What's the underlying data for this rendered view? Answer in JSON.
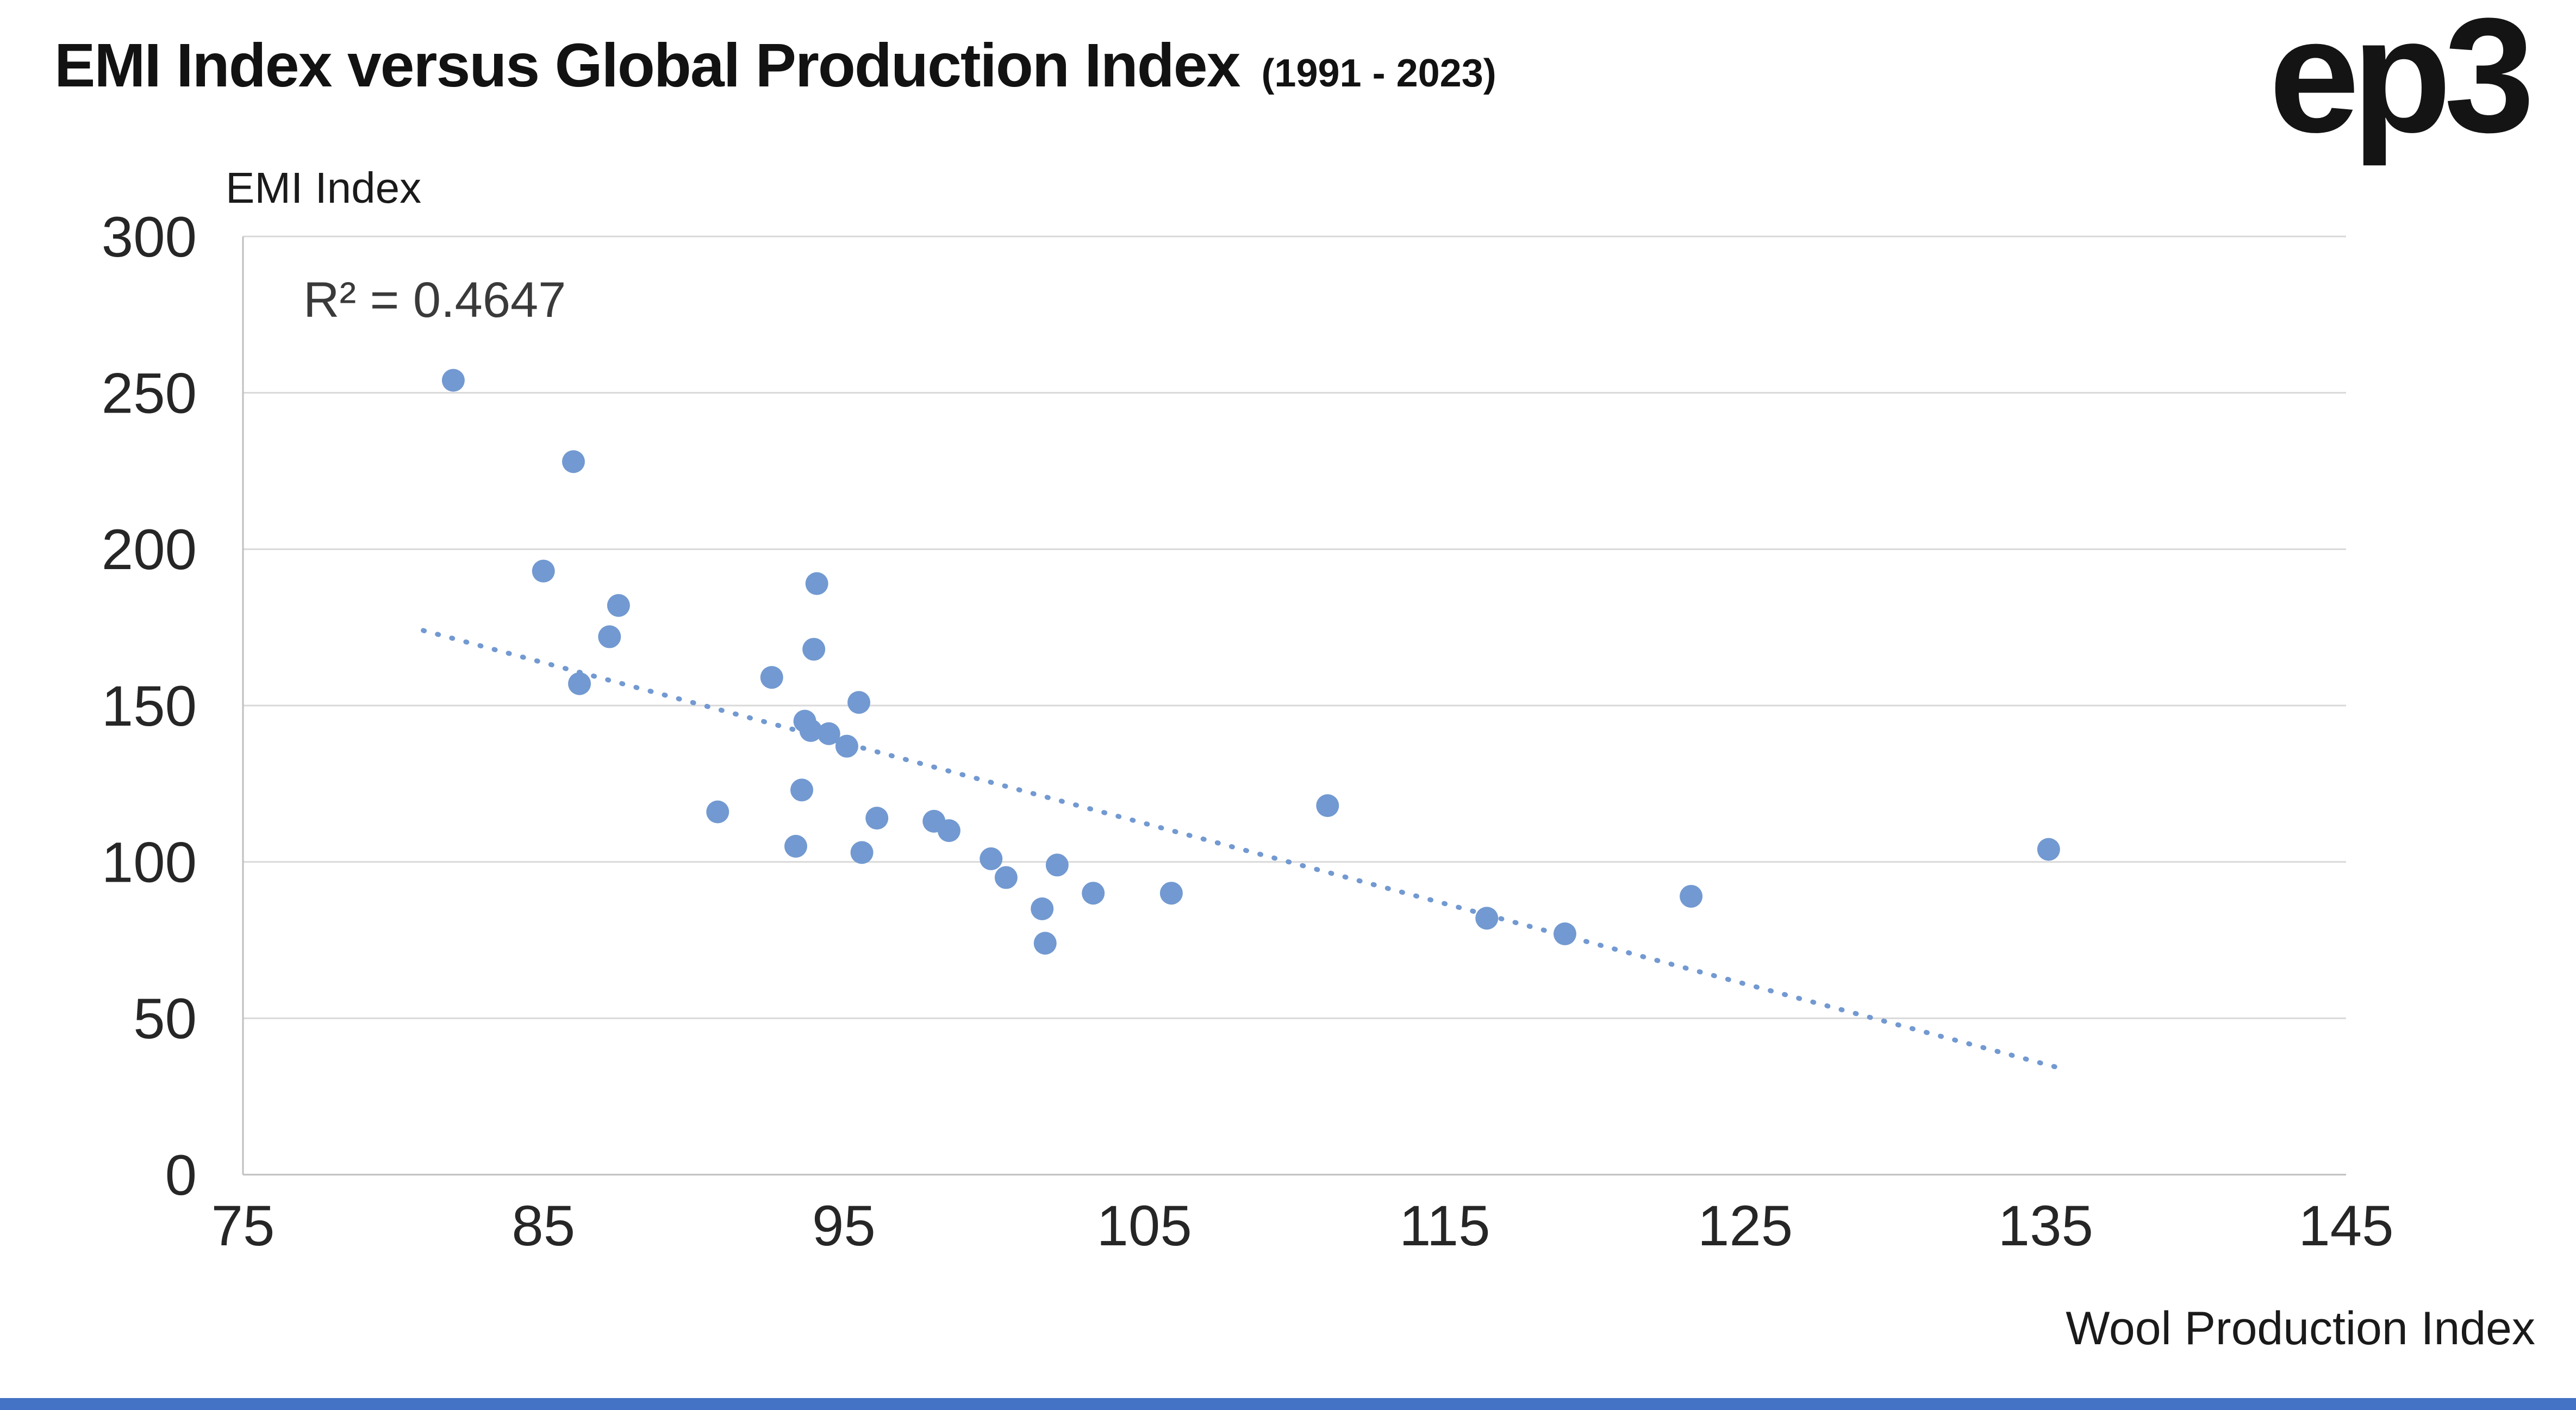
{
  "header": {
    "title": "EMI Index versus Global Production Index",
    "subtitle": "(1991 - 2023)",
    "logo": "ep3"
  },
  "chart_data": {
    "type": "scatter",
    "title": "EMI Index versus Global Production Index (1991 - 2023)",
    "xlabel": "Wool Production Index",
    "ylabel": "EMI Index",
    "annotation": "R² = 0.4647",
    "r_squared": 0.4647,
    "xlim": [
      75,
      145
    ],
    "ylim": [
      0,
      300
    ],
    "x_ticks": [
      75,
      85,
      95,
      105,
      115,
      125,
      135,
      145
    ],
    "y_ticks": [
      0,
      50,
      100,
      150,
      200,
      250,
      300
    ],
    "grid": "horizontal",
    "legend": "none",
    "points": [
      [
        82,
        254
      ],
      [
        85,
        193
      ],
      [
        86,
        228
      ],
      [
        86.2,
        157
      ],
      [
        87.2,
        172
      ],
      [
        87.5,
        182
      ],
      [
        90.8,
        116
      ],
      [
        92.6,
        159
      ],
      [
        93.4,
        105
      ],
      [
        93.6,
        123
      ],
      [
        93.7,
        145
      ],
      [
        93.9,
        142
      ],
      [
        94.0,
        168
      ],
      [
        94.1,
        189
      ],
      [
        94.5,
        141
      ],
      [
        95.1,
        137
      ],
      [
        95.5,
        151
      ],
      [
        95.6,
        103
      ],
      [
        96.1,
        114
      ],
      [
        98.0,
        113
      ],
      [
        98.5,
        110
      ],
      [
        99.9,
        101
      ],
      [
        100.4,
        95
      ],
      [
        101.6,
        85
      ],
      [
        101.7,
        74
      ],
      [
        102.1,
        99
      ],
      [
        103.3,
        90
      ],
      [
        105.9,
        90
      ],
      [
        111.1,
        118
      ],
      [
        116.4,
        82
      ],
      [
        119.0,
        77
      ],
      [
        123.2,
        89
      ],
      [
        135.1,
        104
      ]
    ],
    "trendline": {
      "x1": 81,
      "y1": 174,
      "x2": 135.5,
      "y2": 34,
      "style": "dotted"
    }
  },
  "colors": {
    "point_blue": "#7299d1",
    "footer_bar_blue": "#4472c4",
    "gridline": "#d9d9d9",
    "axis_line": "#bfbfbf",
    "tick_text": "#262626"
  }
}
